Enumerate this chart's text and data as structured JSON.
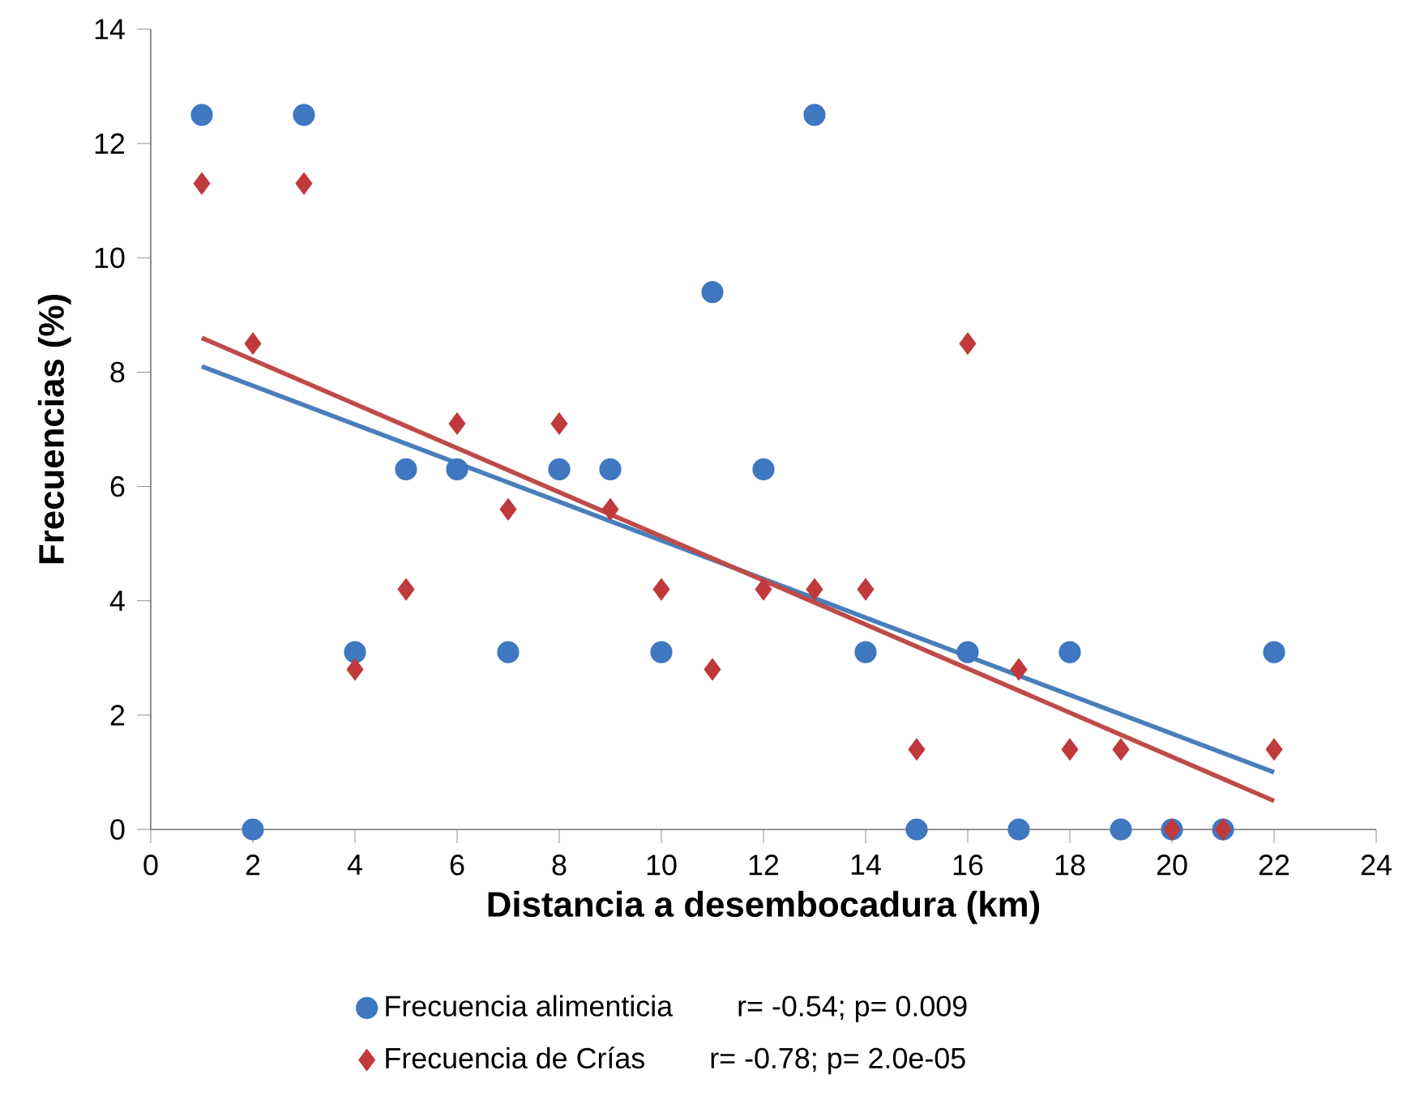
{
  "chart_data": {
    "type": "scatter",
    "xlabel": "Distancia a desembocadura (km)",
    "ylabel": "Frecuencias (%)",
    "xlim": [
      0,
      24
    ],
    "xticks": [
      0,
      2,
      4,
      6,
      8,
      10,
      12,
      14,
      16,
      18,
      20,
      22,
      24
    ],
    "ylim": [
      0,
      14
    ],
    "yticks": [
      0,
      2,
      4,
      6,
      8,
      10,
      12,
      14
    ],
    "grid": false,
    "legend": "bottom",
    "annotations": [
      "r= -0.54; p= 0.009",
      "r= -0.78; p= 2.0e-05"
    ],
    "series": [
      {
        "name": "Frecuencia alimenticia",
        "color": "#3f77c0",
        "marker": "circle",
        "x": [
          1,
          2,
          3,
          4,
          5,
          6,
          7,
          8,
          9,
          10,
          11,
          12,
          13,
          14,
          15,
          16,
          17,
          18,
          19,
          20,
          21,
          22
        ],
        "values": [
          12.5,
          0,
          12.5,
          3.1,
          6.3,
          6.3,
          3.1,
          6.3,
          6.3,
          3.1,
          9.4,
          6.3,
          12.5,
          3.1,
          0,
          3.1,
          0,
          3.1,
          0,
          0,
          0,
          3.1
        ]
      },
      {
        "name": "Frecuencia de Crías",
        "color": "#c0393b",
        "marker": "diamond",
        "x": [
          1,
          2,
          3,
          4,
          5,
          6,
          7,
          8,
          9,
          10,
          11,
          12,
          13,
          14,
          15,
          16,
          17,
          18,
          19,
          20,
          21,
          22
        ],
        "values": [
          11.3,
          8.5,
          11.3,
          2.8,
          4.2,
          7.1,
          5.6,
          7.1,
          5.6,
          4.2,
          2.8,
          4.2,
          4.2,
          4.2,
          1.4,
          8.5,
          2.8,
          1.4,
          1.4,
          0,
          0,
          1.4
        ]
      },
      {
        "type": "line",
        "color": "#4a7ebb",
        "marker": "none",
        "x": [
          1,
          22
        ],
        "values": [
          8.1,
          1.0
        ]
      },
      {
        "type": "line",
        "color": "#be4b48",
        "marker": "none",
        "x": [
          1,
          22
        ],
        "values": [
          8.6,
          0.5
        ]
      }
    ]
  }
}
